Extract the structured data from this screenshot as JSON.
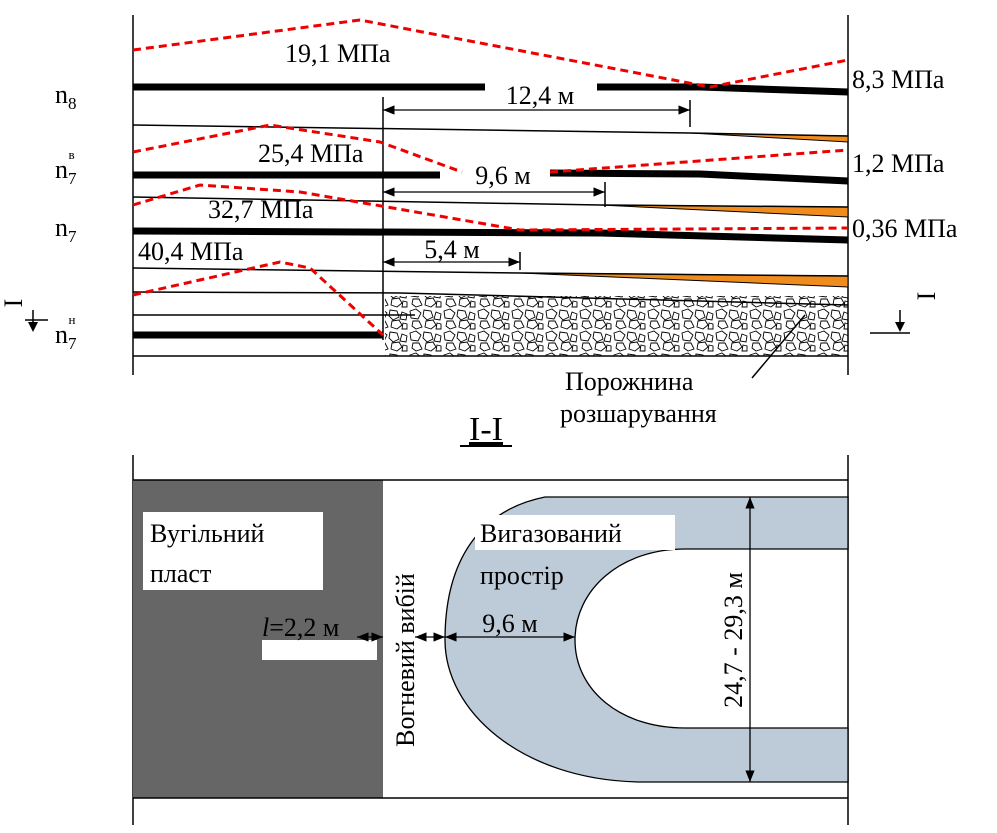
{
  "section_top": {
    "seams": [
      {
        "base": "n",
        "sub": "8"
      },
      {
        "base": "n",
        "sub": "7",
        "sup": "в"
      },
      {
        "base": "n",
        "sub": "7"
      },
      {
        "base": "n",
        "sub": "7",
        "sup": "н"
      }
    ],
    "stresses_left": [
      "19,1 МПа",
      "25,4 МПа",
      "32,7 МПа",
      "40,4 МПа"
    ],
    "stresses_right": [
      "8,3 МПа",
      "1,2 МПа",
      "0,36 МПа"
    ],
    "distances": [
      "12,4 м",
      "9,6 м",
      "5,4 м"
    ],
    "section_mark": "I",
    "cavity_label": [
      "Порожнина",
      "розшарування"
    ]
  },
  "section_title": "I-I",
  "plan": {
    "coal_label": [
      "Вугільний",
      "пласт"
    ],
    "gasified_label": [
      "Вигазований",
      "простір"
    ],
    "fire_face": "Вогневий вибій",
    "gap": {
      "var": "l",
      "text": "=2,2 м"
    },
    "distance": "9,6 м",
    "width": "24,7 - 29,3 м"
  }
}
